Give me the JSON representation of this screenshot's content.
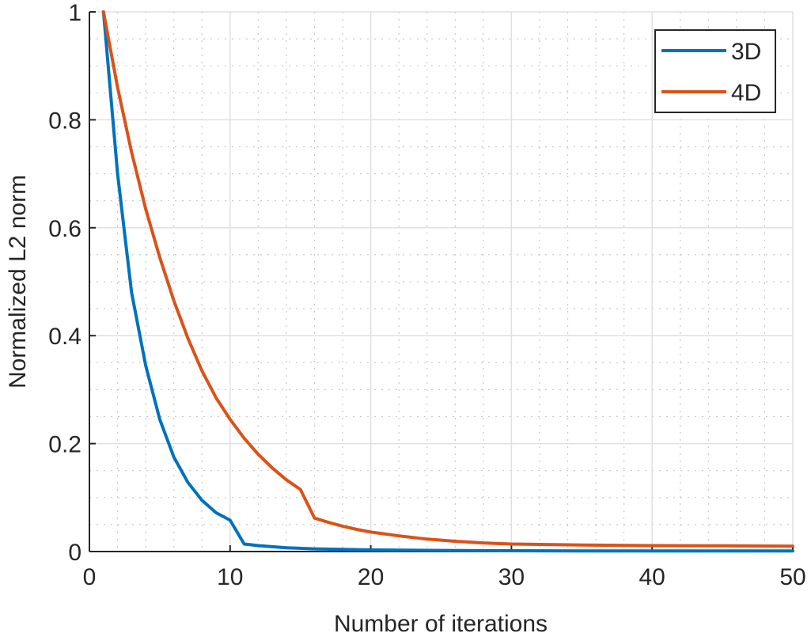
{
  "chart_data": {
    "type": "line",
    "title": "",
    "xlabel": "Number of iterations",
    "ylabel": "Normalized L2 norm",
    "xlim": [
      0,
      50
    ],
    "ylim": [
      0,
      1
    ],
    "xticks": [
      0,
      10,
      20,
      30,
      40,
      50
    ],
    "xtick_labels": [
      "0",
      "10",
      "20",
      "30",
      "40",
      "50"
    ],
    "yticks": [
      0,
      0.2,
      0.4,
      0.6,
      0.8,
      1
    ],
    "ytick_labels": [
      "0",
      "0.2",
      "0.4",
      "0.6",
      "0.8",
      "1"
    ],
    "grid": true,
    "minor_grid": true,
    "legend_position": "upper right",
    "series": [
      {
        "name": "3D",
        "color": "#0072BD",
        "x": [
          1,
          2,
          3,
          4,
          5,
          6,
          7,
          8,
          9,
          10,
          11,
          12,
          13,
          14,
          15,
          16,
          18,
          20,
          25,
          30,
          35,
          40,
          45,
          50
        ],
        "y": [
          1.0,
          0.7,
          0.48,
          0.345,
          0.245,
          0.175,
          0.128,
          0.095,
          0.072,
          0.058,
          0.014,
          0.011,
          0.009,
          0.007,
          0.006,
          0.005,
          0.004,
          0.003,
          0.002,
          0.0015,
          0.001,
          0.001,
          0.001,
          0.001
        ]
      },
      {
        "name": "4D",
        "color": "#D95319",
        "x": [
          1,
          2,
          3,
          4,
          5,
          6,
          7,
          8,
          9,
          10,
          11,
          12,
          13,
          14,
          15,
          16,
          17,
          18,
          19,
          20,
          22,
          24,
          26,
          28,
          30,
          35,
          40,
          45,
          50
        ],
        "y": [
          1.0,
          0.86,
          0.74,
          0.635,
          0.545,
          0.465,
          0.395,
          0.335,
          0.285,
          0.245,
          0.21,
          0.18,
          0.155,
          0.133,
          0.115,
          0.062,
          0.054,
          0.047,
          0.041,
          0.036,
          0.029,
          0.023,
          0.019,
          0.016,
          0.014,
          0.012,
          0.011,
          0.0105,
          0.01
        ]
      }
    ]
  },
  "legend": {
    "items": [
      {
        "label": "3D",
        "color": "#0072BD"
      },
      {
        "label": "4D",
        "color": "#D95319"
      }
    ]
  },
  "axes": {
    "xlabel": "Number of iterations",
    "ylabel": "Normalized L2 norm"
  }
}
